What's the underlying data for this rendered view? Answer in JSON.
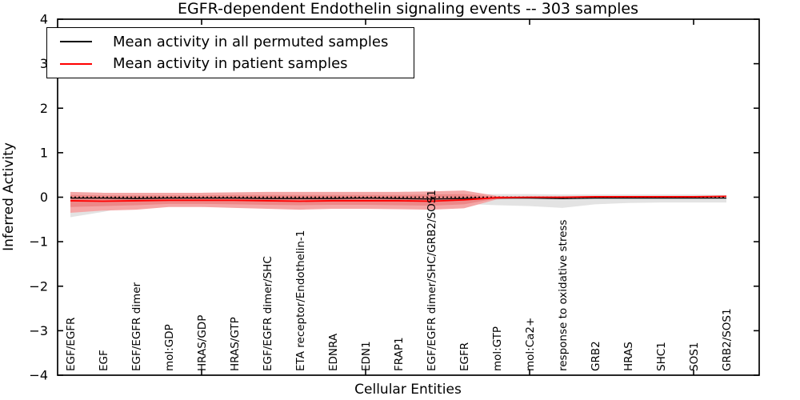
{
  "chart_data": {
    "type": "line",
    "title": "EGFR-dependent Endothelin signaling events -- 303 samples",
    "xlabel": "Cellular Entities",
    "ylabel": "Inferred Activity",
    "ylim": [
      -4,
      4
    ],
    "yticks": [
      -4,
      -3,
      -2,
      -1,
      0,
      1,
      2,
      3,
      4
    ],
    "grid": false,
    "legend_position": "upper left",
    "zero_line": 0,
    "categories": [
      "EGF/EGFR",
      "EGF",
      "EGF/EGFR dimer",
      "mol:GDP",
      "HRAS/GDP",
      "HRAS/GTP",
      "EGF/EGFR dimer/SHC",
      "ETA receptor/Endothelin-1",
      "EDNRA",
      "EDN1",
      "FRAP1",
      "EGF/EGFR dimer/SHC/GRB2/SOS1",
      "EGFR",
      "mol:GTP",
      "mol:Ca2+",
      "response to oxidative stress",
      "GRB2",
      "HRAS",
      "SHC1",
      "SOS1",
      "GRB2/SOS1"
    ],
    "series": [
      {
        "name": "Mean activity in all permuted samples",
        "color": "#000000",
        "values": [
          -0.02,
          -0.02,
          -0.03,
          -0.02,
          -0.02,
          -0.02,
          -0.03,
          -0.03,
          -0.03,
          -0.02,
          -0.03,
          -0.04,
          -0.03,
          -0.02,
          -0.02,
          -0.03,
          -0.02,
          -0.02,
          -0.02,
          -0.02,
          -0.02
        ]
      },
      {
        "name": "Mean activity in patient samples",
        "color": "#ff0000",
        "values": [
          -0.08,
          -0.09,
          -0.08,
          -0.07,
          -0.07,
          -0.07,
          -0.08,
          -0.09,
          -0.08,
          -0.08,
          -0.08,
          -0.09,
          -0.06,
          -0.01,
          0.0,
          0.0,
          0.01,
          0.01,
          0.01,
          0.01,
          0.02
        ]
      }
    ],
    "bands": [
      {
        "name": "permuted-samples-range",
        "color": "#e3e3e3",
        "hi": [
          0.1,
          0.08,
          0.07,
          0.06,
          0.06,
          0.06,
          0.06,
          0.06,
          0.06,
          0.06,
          0.07,
          0.07,
          0.07,
          0.07,
          0.07,
          0.06,
          0.06,
          0.06,
          0.06,
          0.06,
          0.05
        ],
        "lo": [
          -0.45,
          -0.33,
          -0.18,
          -0.13,
          -0.12,
          -0.12,
          -0.13,
          -0.13,
          -0.12,
          -0.12,
          -0.13,
          -0.14,
          -0.15,
          -0.18,
          -0.2,
          -0.24,
          -0.16,
          -0.13,
          -0.12,
          -0.12,
          -0.12
        ]
      },
      {
        "name": "patient-samples-range-outer",
        "color": "#f4a6a6",
        "hi": [
          0.12,
          0.1,
          0.1,
          0.1,
          0.1,
          0.11,
          0.12,
          0.12,
          0.12,
          0.12,
          0.12,
          0.13,
          0.15,
          0.03,
          0.01,
          0.01,
          0.02,
          0.02,
          0.02,
          0.02,
          0.03
        ],
        "lo": [
          -0.35,
          -0.3,
          -0.28,
          -0.22,
          -0.22,
          -0.24,
          -0.26,
          -0.28,
          -0.26,
          -0.26,
          -0.27,
          -0.28,
          -0.25,
          -0.05,
          -0.01,
          -0.01,
          -0.01,
          -0.01,
          -0.01,
          -0.01,
          0.0
        ]
      },
      {
        "name": "patient-samples-range-inner",
        "color": "#ec8888",
        "hi": [
          0.05,
          0.04,
          0.04,
          0.04,
          0.04,
          0.05,
          0.05,
          0.05,
          0.05,
          0.05,
          0.05,
          0.06,
          0.07,
          0.01,
          0.0,
          0.0,
          0.01,
          0.01,
          0.01,
          0.01,
          0.02
        ],
        "lo": [
          -0.22,
          -0.2,
          -0.18,
          -0.15,
          -0.15,
          -0.16,
          -0.17,
          -0.18,
          -0.17,
          -0.17,
          -0.18,
          -0.19,
          -0.16,
          -0.03,
          -0.01,
          -0.01,
          0.0,
          0.0,
          0.0,
          0.0,
          0.01
        ]
      }
    ],
    "colors": {
      "permuted_line": "#000000",
      "patient_line": "#ff0000",
      "zero_line": "#000000",
      "frame": "#000000"
    }
  }
}
